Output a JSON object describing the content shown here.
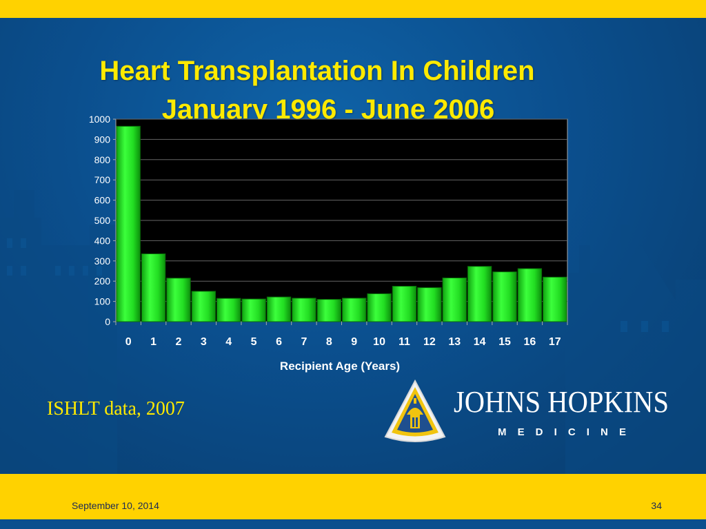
{
  "slide": {
    "title_line1": "Heart Transplantation In Children",
    "title_line2": "January 1996 - June 2006",
    "source_note": "ISHLT data, 2007",
    "footer_date": "September 10, 2014",
    "page_number": "34"
  },
  "logo": {
    "wordmark": "JOHNS HOPKINS",
    "subtitle": "MEDICINE"
  },
  "colors": {
    "brand_yellow": "#ffd200",
    "title_yellow": "#ffea00",
    "brand_blue": "#0b4f8e",
    "bar_green": "#22dd22"
  },
  "chart_data": {
    "type": "bar",
    "categories": [
      "0",
      "1",
      "2",
      "3",
      "4",
      "5",
      "6",
      "7",
      "8",
      "9",
      "10",
      "11",
      "12",
      "13",
      "14",
      "15",
      "16",
      "17"
    ],
    "values": [
      965,
      335,
      215,
      150,
      115,
      112,
      122,
      116,
      110,
      116,
      138,
      175,
      168,
      216,
      273,
      246,
      262,
      220
    ],
    "xlabel": "Recipient Age (Years)",
    "ylabel": "",
    "ylim": [
      0,
      1000
    ],
    "yticks": [
      0,
      100,
      200,
      300,
      400,
      500,
      600,
      700,
      800,
      900,
      1000
    ],
    "grid": true,
    "plot_background": "#000000"
  }
}
